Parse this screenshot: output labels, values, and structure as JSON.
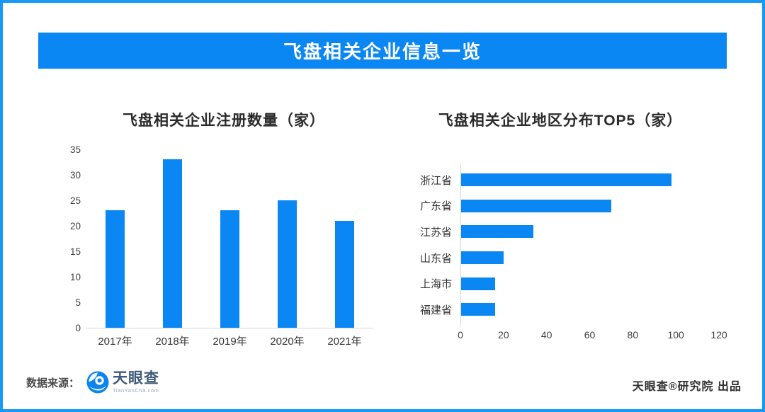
{
  "banner": {
    "title": "飞盘相关企业信息一览"
  },
  "chart_data": [
    {
      "type": "bar",
      "orientation": "vertical",
      "title": "飞盘相关企业注册数量（家）",
      "categories": [
        "2017年",
        "2018年",
        "2019年",
        "2020年",
        "2021年"
      ],
      "values": [
        23,
        33,
        23,
        25,
        21
      ],
      "ylabel": "",
      "xlabel": "",
      "ylim": [
        0,
        35
      ],
      "yticks": [
        0,
        5,
        10,
        15,
        20,
        25,
        30,
        35
      ],
      "grid": false,
      "legend": false,
      "bar_color": "#0a87f2"
    },
    {
      "type": "bar",
      "orientation": "horizontal",
      "title": "飞盘相关企业地区分布TOP5（家）",
      "categories": [
        "浙江省",
        "广东省",
        "江苏省",
        "山东省",
        "上海市",
        "福建省"
      ],
      "values": [
        98,
        70,
        34,
        20,
        16,
        16
      ],
      "ylabel": "",
      "xlabel": "",
      "xlim": [
        0,
        120
      ],
      "xticks": [
        0,
        20,
        40,
        60,
        80,
        100,
        120
      ],
      "grid": false,
      "legend": false,
      "bar_color": "#0a87f2"
    }
  ],
  "footer": {
    "source_label": "数据来源：",
    "logo": {
      "icon": "tianyancha-eye-icon",
      "name": "天眼查",
      "subtext": "TianYanCha.com"
    },
    "credit": "天眼查®研究院 出品"
  },
  "colors": {
    "accent_blue": "#0a87f2",
    "frame_border": "#169af5",
    "axis_line": "#d7d7d7",
    "title_text": "#2b2b2b",
    "banner_text": "#ffffff",
    "logo_navy": "#3d5a78"
  }
}
